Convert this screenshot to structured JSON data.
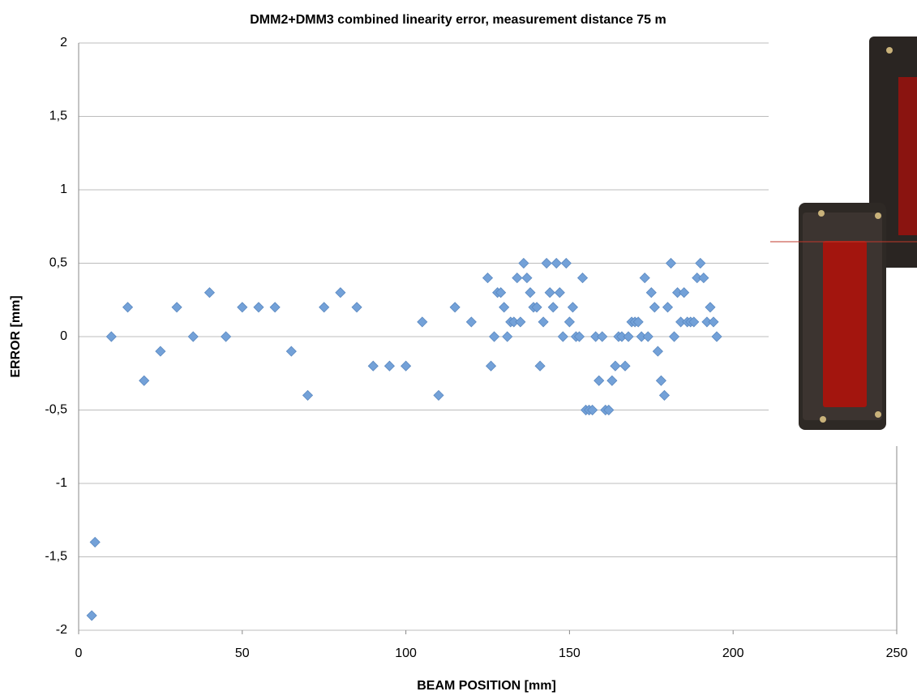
{
  "chart_data": {
    "type": "scatter",
    "title": "DMM2+DMM3 combined linearity error, measurement distance 75 m",
    "x_label": "BEAM POSITION [mm]",
    "y_label": "ERROR [mm]",
    "xlim": [
      0,
      250
    ],
    "xticks": [
      0,
      50,
      100,
      150,
      200,
      250
    ],
    "ylim": [
      -2,
      2
    ],
    "yticks": [
      -2,
      {
        "value": -1.5,
        "label": "-1,5"
      },
      -1,
      {
        "value": -0.5,
        "label": "-0,5"
      },
      0,
      {
        "value": 0.5,
        "label": "0,5"
      },
      1,
      {
        "value": 1.5,
        "label": "1,5"
      },
      2
    ],
    "grid": true,
    "series": [
      {
        "color": "#73a1d8",
        "x": [
          4,
          5,
          10,
          15,
          20,
          25,
          30,
          35,
          40,
          45,
          50,
          55,
          60,
          65,
          70,
          75,
          80,
          85,
          90,
          95,
          100,
          105,
          110,
          115,
          120,
          125,
          126,
          127,
          128,
          129,
          130,
          131,
          132,
          133,
          134,
          135,
          136,
          137,
          138,
          139,
          140,
          141,
          142,
          143,
          144,
          145,
          146,
          147,
          148,
          149,
          150,
          151,
          152,
          153,
          154,
          155,
          156,
          157,
          158,
          159,
          160,
          161,
          162,
          163,
          164,
          165,
          166,
          167,
          168,
          169,
          170,
          171,
          172,
          173,
          174,
          175,
          176,
          177,
          178,
          179,
          180,
          181,
          182,
          183,
          184,
          185,
          186,
          187,
          188,
          189,
          190,
          191,
          192,
          193,
          194,
          195
        ],
        "values": [
          -1.9,
          -1.4,
          0,
          0.2,
          -0.3,
          -0.1,
          0.2,
          0,
          0.3,
          0,
          0.2,
          0.2,
          0.2,
          -0.1,
          -0.4,
          0.2,
          0.3,
          0.2,
          -0.2,
          -0.2,
          -0.2,
          0.1,
          -0.4,
          0.2,
          0.1,
          0.4,
          -0.2,
          0,
          0.3,
          0.3,
          0.2,
          0,
          0.1,
          0.1,
          0.4,
          0.1,
          0.5,
          0.4,
          0.3,
          0.2,
          0.2,
          -0.2,
          0.1,
          0.5,
          0.3,
          0.2,
          0.5,
          0.3,
          0,
          0.5,
          0.1,
          0.2,
          0,
          0,
          0.4,
          -0.5,
          -0.5,
          -0.5,
          0,
          -0.3,
          0,
          -0.5,
          -0.5,
          -0.3,
          -0.2,
          0,
          0,
          -0.2,
          0,
          0.1,
          0.1,
          0.1,
          0,
          0.4,
          0,
          0.3,
          0.2,
          -0.1,
          -0.3,
          -0.4,
          0.2,
          0.5,
          0,
          0.3,
          0.1,
          0.3,
          0.1,
          0.1,
          0.1,
          0.4,
          0.5,
          0.4,
          0.1,
          0.2,
          0.1,
          0
        ]
      }
    ]
  }
}
